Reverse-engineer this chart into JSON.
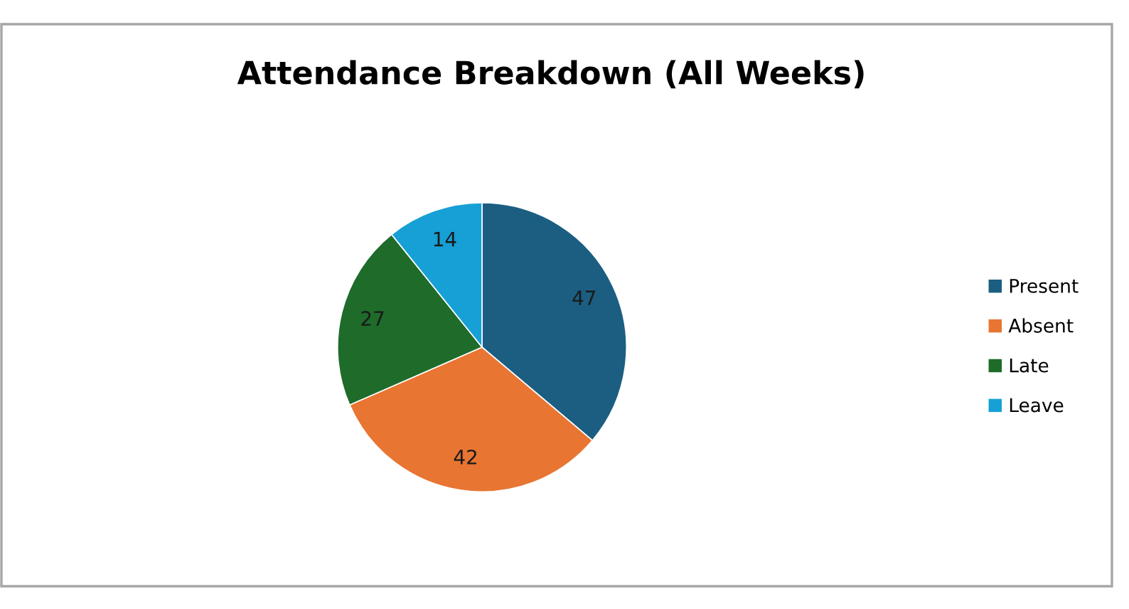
{
  "chart_data": {
    "type": "pie",
    "title": "Attendance Breakdown (All Weeks)",
    "categories": [
      "Present",
      "Absent",
      "Late",
      "Leave"
    ],
    "values": [
      47,
      42,
      27,
      14
    ],
    "colors": [
      "#1b5e82",
      "#e87532",
      "#1e6b2a",
      "#16a0d6"
    ],
    "data_labels": true,
    "legend": "right"
  }
}
